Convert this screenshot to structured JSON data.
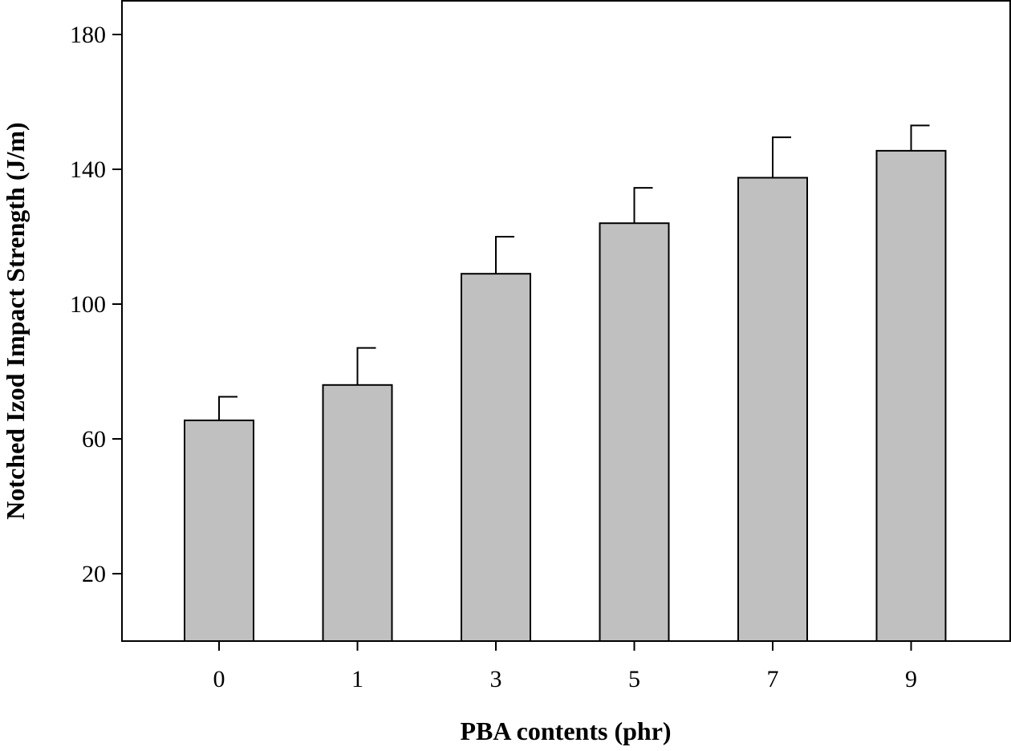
{
  "chart_data": {
    "type": "bar",
    "title": "",
    "xlabel": "PBA contents (phr)",
    "ylabel": "Notched Izod Impact Strength (J/m)",
    "categories": [
      "0",
      "1",
      "3",
      "5",
      "7",
      "9"
    ],
    "values": [
      65.5,
      76,
      109,
      124,
      137.5,
      145.5
    ],
    "error_plus": [
      7,
      11,
      11,
      10.5,
      12,
      7.5
    ],
    "ylim": [
      0,
      190
    ],
    "yticks": [
      20,
      60,
      100,
      140,
      180
    ],
    "ytick_labels": [
      "20",
      "60",
      "100",
      "140",
      "180"
    ],
    "grid": false,
    "legend": "none",
    "colors": {
      "bar_fill": "#c0c0c0",
      "bar_stroke": "#000000"
    }
  }
}
